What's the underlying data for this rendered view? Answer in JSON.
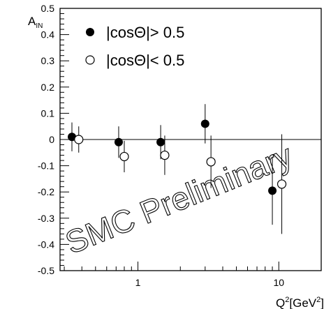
{
  "chart_data": {
    "type": "scatter",
    "title": "",
    "xlabel_base": "Q",
    "xlabel_sup": "2",
    "xlabel_unit_pre": "[GeV",
    "xlabel_unit_sup": "2",
    "xlabel_unit_post": "]",
    "ylabel_base": "A",
    "ylabel_sub": "IN",
    "x_scale": "log",
    "xlim": [
      0.28,
      20
    ],
    "ylim": [
      -0.5,
      0.5
    ],
    "x_ticks": [
      {
        "value": 1,
        "label": "1"
      },
      {
        "value": 10,
        "label": "10"
      }
    ],
    "y_ticks": [
      {
        "value": 0.5,
        "label": "0.5"
      },
      {
        "value": 0.4,
        "label": "0.4"
      },
      {
        "value": 0.3,
        "label": "0.3"
      },
      {
        "value": 0.2,
        "label": "0.2"
      },
      {
        "value": 0.1,
        "label": "0.1"
      },
      {
        "value": 0,
        "label": "0"
      },
      {
        "value": -0.1,
        "label": "-0.1"
      },
      {
        "value": -0.2,
        "label": "-0.2"
      },
      {
        "value": -0.3,
        "label": "-0.3"
      },
      {
        "value": -0.4,
        "label": "-0.4"
      },
      {
        "value": -0.5,
        "label": "-0.5"
      }
    ],
    "zero_line": true,
    "legend_position": "top-left",
    "series": [
      {
        "name": "|cosΘ|> 0.5",
        "marker": "filled-circle",
        "points": [
          {
            "x": 0.34,
            "y": 0.01,
            "err": 0.055
          },
          {
            "x": 0.73,
            "y": -0.01,
            "err": 0.06
          },
          {
            "x": 1.45,
            "y": -0.01,
            "err": 0.065
          },
          {
            "x": 3.0,
            "y": 0.06,
            "err": 0.075
          },
          {
            "x": 9.0,
            "y": -0.195,
            "err": 0.13
          }
        ]
      },
      {
        "name": "|cosΘ|< 0.5",
        "marker": "open-circle",
        "points": [
          {
            "x": 0.38,
            "y": 0.0,
            "err": 0.05
          },
          {
            "x": 0.8,
            "y": -0.065,
            "err": 0.06
          },
          {
            "x": 1.55,
            "y": -0.06,
            "err": 0.075
          },
          {
            "x": 3.3,
            "y": -0.085,
            "err": 0.1
          },
          {
            "x": 10.5,
            "y": -0.17,
            "err": 0.19
          }
        ]
      }
    ],
    "watermark": "SMC Preliminary"
  }
}
